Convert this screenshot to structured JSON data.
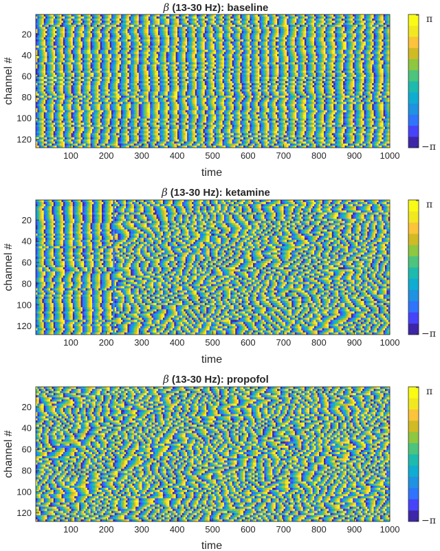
{
  "colormap": [
    "#3e26a8",
    "#4743f9",
    "#2f74fb",
    "#1f92e1",
    "#10acd1",
    "#1ebaad",
    "#4cc47e",
    "#8ec740",
    "#d0bb25",
    "#fbc43a",
    "#f2e81f",
    "#f9fb15"
  ],
  "chart_data": [
    {
      "type": "heatmap",
      "title_symbol": "β",
      "title": "(13-30 Hz): baseline",
      "xlabel": "time",
      "ylabel": "channel #",
      "xlim": [
        1,
        1000
      ],
      "ylim": [
        1,
        128
      ],
      "xticks": [
        "100",
        "200",
        "300",
        "400",
        "500",
        "600",
        "700",
        "800",
        "900",
        "1000"
      ],
      "yticks": [
        "20",
        "40",
        "60",
        "80",
        "100",
        "120"
      ],
      "colorbar": {
        "min": "−π",
        "max": "π"
      },
      "pattern": "vertical bands of phase, nearly synchronous across channels",
      "sync": 0.15,
      "seed": 7
    },
    {
      "type": "heatmap",
      "title_symbol": "β",
      "title": "(13-30 Hz): ketamine",
      "xlabel": "time",
      "ylabel": "channel #",
      "xlim": [
        1,
        1000
      ],
      "ylim": [
        1,
        128
      ],
      "xticks": [
        "100",
        "200",
        "300",
        "400",
        "500",
        "600",
        "700",
        "800",
        "900",
        "1000"
      ],
      "yticks": [
        "20",
        "40",
        "60",
        "80",
        "100",
        "120"
      ],
      "colorbar": {
        "min": "−π",
        "max": "π"
      },
      "pattern": "synchronous bands before ~220, then fragmented travelling waves",
      "sync": 0.8,
      "seed": 23
    },
    {
      "type": "heatmap",
      "title_symbol": "β",
      "title": "(13-30 Hz): propofol",
      "xlabel": "time",
      "ylabel": "channel #",
      "xlim": [
        1,
        1000
      ],
      "ylim": [
        1,
        128
      ],
      "xticks": [
        "100",
        "200",
        "300",
        "400",
        "500",
        "600",
        "700",
        "800",
        "900",
        "1000"
      ],
      "yticks": [
        "20",
        "40",
        "60",
        "80",
        "100",
        "120"
      ],
      "colorbar": {
        "min": "−π",
        "max": "π"
      },
      "pattern": "fragmented travelling waves across the whole window",
      "sync": 1.0,
      "seed": 41
    }
  ]
}
